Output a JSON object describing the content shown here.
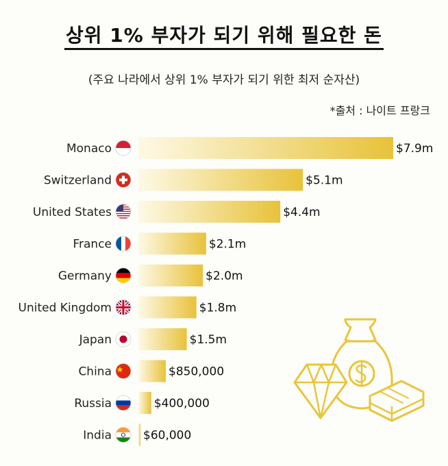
{
  "header": {
    "title": "상위 1% 부자가 되기 위해 필요한 돈",
    "subtitle": "(주요 나라에서 상위 1% 부자가 되기 위한 최저 순자산)",
    "source": "*출처 :  나이트 프랑크"
  },
  "chart_data": {
    "type": "bar",
    "orientation": "horizontal",
    "title": "상위 1% 부자가 되기 위해 필요한 돈",
    "subtitle": "(주요 나라에서 상위 1% 부자가 되기 위한 최저 순자산)",
    "categories": [
      "Monaco",
      "Switzerland",
      "United States",
      "France",
      "Germany",
      "United Kingdom",
      "Japan",
      "China",
      "Russia",
      "India"
    ],
    "values": [
      7900000,
      5100000,
      4400000,
      2100000,
      2000000,
      1800000,
      1500000,
      850000,
      400000,
      60000
    ],
    "data_labels": [
      "$7.9m",
      "$5.1m",
      "$4.4m",
      "$2.1m",
      "$2.0m",
      "$1.8m",
      "$1.5m",
      "$850,000",
      "$400,000",
      "$60,000"
    ],
    "flag_icons": [
      "monaco-flag-icon",
      "switzerland-flag-icon",
      "united-states-flag-icon",
      "france-flag-icon",
      "germany-flag-icon",
      "united-kingdom-flag-icon",
      "japan-flag-icon",
      "china-flag-icon",
      "russia-flag-icon",
      "india-flag-icon"
    ],
    "bar_gradient": [
      "#fdf9e6",
      "#e8c23a"
    ],
    "xlim": [
      0,
      7900000
    ],
    "grid": false,
    "legend": "none"
  },
  "decoration": {
    "icon": "money-bag-diamond-cash-icon",
    "color": "#e9c53a"
  }
}
